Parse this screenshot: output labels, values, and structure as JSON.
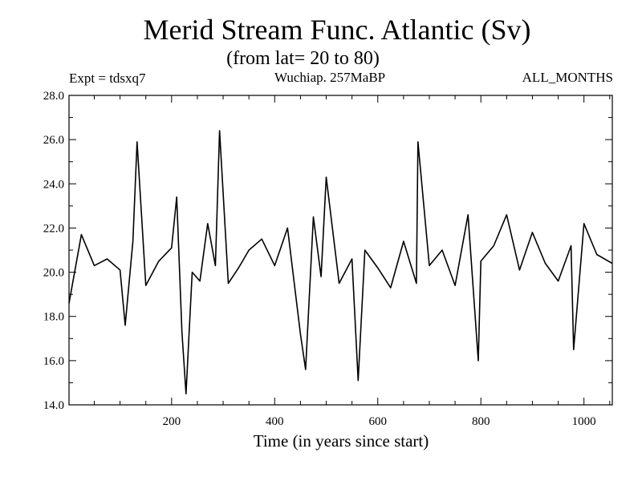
{
  "chart_data": {
    "type": "line",
    "title": "Merid Stream Func. Atlantic (Sv)",
    "subtitle": "(from lat= 20 to 80)",
    "left_label": "Expt = tdsxq7",
    "center_label": "Wuchiap. 257MaBP",
    "right_label": "ALL_MONTHS",
    "xlabel": "Time (in years since start)",
    "ylabel": "",
    "xlim": [
      1,
      1055
    ],
    "ylim": [
      14.0,
      28.0
    ],
    "x_ticks": [
      200,
      400,
      600,
      800,
      1000
    ],
    "y_ticks": [
      "14.0",
      "16.0",
      "18.0",
      "20.0",
      "22.0",
      "24.0",
      "26.0",
      "28.0"
    ],
    "grid": false,
    "color": "#000000",
    "series": [
      {
        "x": [
          1,
          25,
          50,
          75,
          100,
          110,
          125,
          133,
          150,
          175,
          200,
          210,
          220,
          228,
          240,
          255,
          270,
          285,
          293,
          310,
          330,
          350,
          375,
          400,
          425,
          450,
          460,
          475,
          490,
          500,
          525,
          550,
          562,
          575,
          600,
          625,
          650,
          675,
          678,
          700,
          725,
          750,
          775,
          795,
          800,
          825,
          850,
          875,
          900,
          925,
          950,
          975,
          980,
          1000,
          1025,
          1055
        ],
        "values": [
          18.6,
          21.7,
          20.3,
          20.6,
          20.1,
          17.6,
          21.4,
          25.9,
          19.4,
          20.5,
          21.1,
          23.4,
          17.3,
          14.5,
          20.0,
          19.6,
          22.2,
          20.3,
          26.4,
          19.5,
          20.2,
          21.0,
          21.5,
          20.3,
          22.0,
          17.2,
          15.6,
          22.5,
          19.8,
          24.3,
          19.5,
          20.6,
          15.1,
          21.0,
          20.2,
          19.3,
          21.4,
          19.5,
          25.9,
          20.3,
          21.0,
          19.4,
          22.6,
          16.0,
          20.5,
          21.2,
          22.6,
          20.1,
          21.8,
          20.4,
          19.6,
          21.2,
          16.5,
          22.2,
          20.8,
          20.4
        ]
      }
    ]
  }
}
